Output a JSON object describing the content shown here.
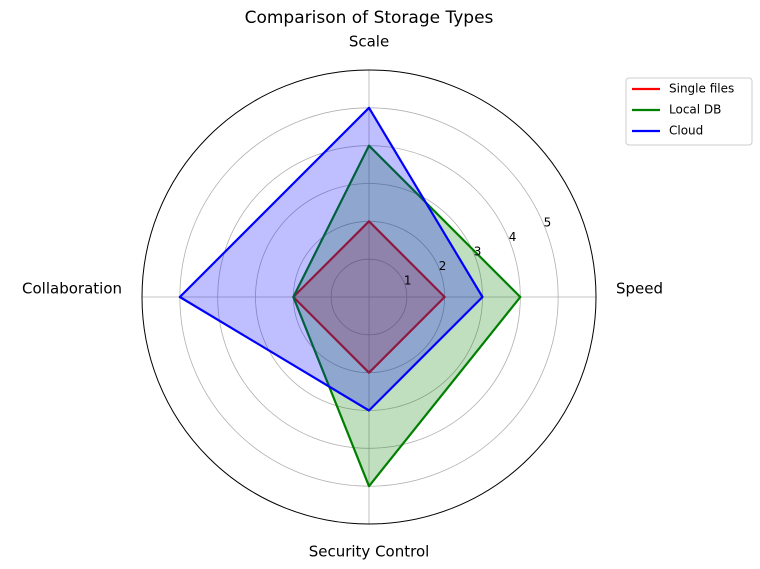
{
  "chart_data": {
    "type": "radar",
    "title": "Comparison of Storage Types",
    "categories": [
      "Speed",
      "Scale",
      "Collaboration",
      "Security Control"
    ],
    "series": [
      {
        "name": "Single files",
        "color": "red",
        "values": [
          2,
          2,
          2,
          2
        ]
      },
      {
        "name": "Local DB",
        "color": "green",
        "values": [
          4,
          4,
          2,
          5
        ]
      },
      {
        "name": "Cloud",
        "color": "blue",
        "values": [
          3,
          5,
          5,
          3
        ]
      }
    ],
    "ylim": [
      0,
      6
    ],
    "yticks": [
      1,
      2,
      3,
      4,
      5
    ],
    "grid": true,
    "legend": "upper right"
  }
}
